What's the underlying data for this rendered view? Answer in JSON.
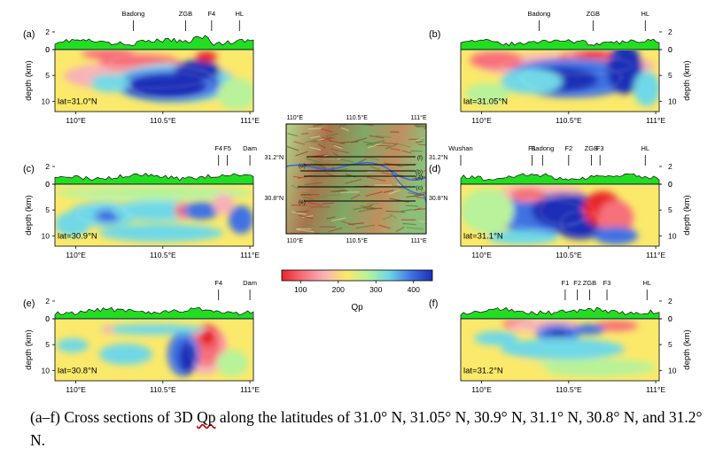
{
  "panels": [
    {
      "id": "a",
      "letter": "(a)",
      "lat": "lat=31.0°N",
      "features": [
        {
          "label": "Badong",
          "lon": 110.33
        },
        {
          "label": "ZGB",
          "lon": 110.63
        },
        {
          "label": "F4",
          "lon": 110.78
        },
        {
          "label": "HL",
          "lon": 110.94
        }
      ]
    },
    {
      "id": "b",
      "letter": "(b)",
      "lat": "lat=31.05°N",
      "features": [
        {
          "label": "Badong",
          "lon": 110.33
        },
        {
          "label": "ZGB",
          "lon": 110.64
        },
        {
          "label": "HL",
          "lon": 110.94
        }
      ]
    },
    {
      "id": "c",
      "letter": "(c)",
      "lat": "lat=30.9°N",
      "features": [
        {
          "label": "F4",
          "lon": 110.82
        },
        {
          "label": "F5",
          "lon": 110.87
        },
        {
          "label": "Dam",
          "lon": 111.0
        }
      ]
    },
    {
      "id": "d",
      "letter": "(d)",
      "lat": "lat=31.1°N",
      "features": [
        {
          "label": "Wushan",
          "lon": 109.88
        },
        {
          "label": "F1",
          "lon": 110.29
        },
        {
          "label": "Badong",
          "lon": 110.35
        },
        {
          "label": "F2",
          "lon": 110.5
        },
        {
          "label": "ZGB",
          "lon": 110.63
        },
        {
          "label": "F3",
          "lon": 110.68
        },
        {
          "label": "HL",
          "lon": 110.94
        }
      ]
    },
    {
      "id": "e",
      "letter": "(e)",
      "lat": "lat=30.8°N",
      "features": [
        {
          "label": "F4",
          "lon": 110.82
        },
        {
          "label": "Dam",
          "lon": 111.0
        }
      ]
    },
    {
      "id": "f",
      "letter": "(f)",
      "lat": "lat=31.2°N",
      "features": [
        {
          "label": "F1",
          "lon": 110.48
        },
        {
          "label": "F2",
          "lon": 110.55
        },
        {
          "label": "ZGB",
          "lon": 110.62
        },
        {
          "label": "F3",
          "lon": 110.72
        },
        {
          "label": "HL",
          "lon": 110.95
        }
      ]
    }
  ],
  "section_axis": {
    "xticks": [
      "110°E",
      "110.5°E",
      "111°E"
    ],
    "xtick_values": [
      110.0,
      110.5,
      111.0
    ],
    "xrange": [
      109.88,
      111.02
    ],
    "depth_label": "depth (km)",
    "depth_ticks": [
      "0",
      "5",
      "10"
    ],
    "depth_range": [
      0,
      12
    ],
    "topo_label": "2",
    "topo_ticks": [
      "2",
      "0"
    ]
  },
  "map": {
    "top_ticks": [
      "110°E",
      "110.5°E",
      "111°E"
    ],
    "bottom_ticks": [
      "110°E",
      "110.5°E",
      "111°E"
    ],
    "lat_left": [
      "31.2°N",
      "30.8°N"
    ],
    "lat_right": [
      "31.2°N",
      "30.8°N"
    ],
    "profile_labels": [
      "(f)",
      "(d)",
      "(b)",
      "(a)",
      "(c)",
      "(e)"
    ]
  },
  "colorbar": {
    "ticks": [
      "100",
      "200",
      "300",
      "400"
    ],
    "values": [
      100,
      200,
      300,
      400
    ],
    "range": [
      50,
      450
    ],
    "label": "Qp",
    "colors": [
      "#e8262a",
      "#f7707a",
      "#f7b2b5",
      "#fbe96b",
      "#b8f29a",
      "#6fd8e6",
      "#3f72e3",
      "#1c2fb6"
    ]
  },
  "caption": {
    "pre": "(a–f) Cross sections of 3D ",
    "word": "Qp",
    "post": " along the latitudes of 31.0° N, 31.05° N, 30.9° N, 31.1° N, 30.8° N, and 31.2° N."
  }
}
